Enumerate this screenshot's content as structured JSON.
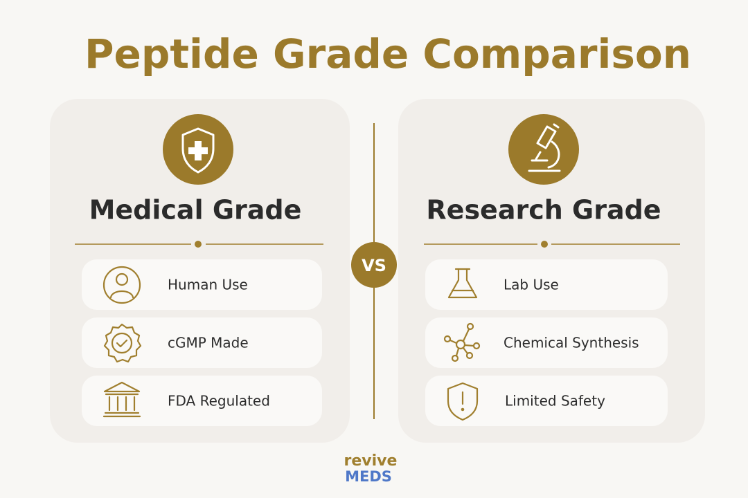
{
  "header": {
    "title": "Peptide Grade Comparison"
  },
  "panels": [
    {
      "title": "Medical Grade",
      "items": [
        "Human Use",
        "cGMP Made",
        "FDA Regulated"
      ]
    },
    {
      "title": "Research Grade",
      "items": [
        "Lab Use",
        "Chemical Synthesis",
        "Limited Safety"
      ]
    }
  ],
  "divider": {
    "label": "VS"
  },
  "logo": {
    "line1": "revive",
    "line2": "MEDS"
  }
}
